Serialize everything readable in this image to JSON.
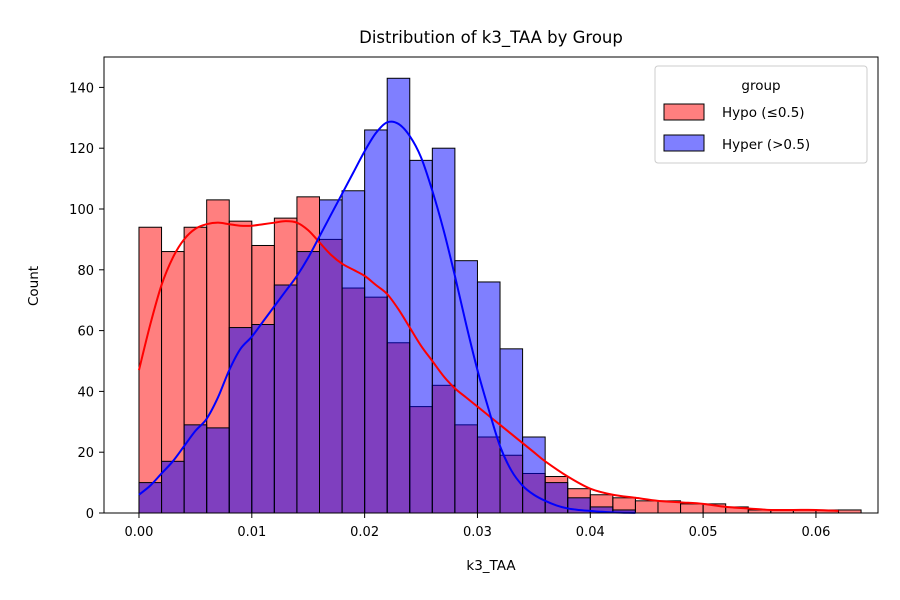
{
  "chart_data": {
    "type": "histogram",
    "title": "Distribution of k3_TAA by Group",
    "xlabel": "k3_TAA",
    "ylabel": "Count",
    "xlim": [
      -0.0031,
      0.0655
    ],
    "ylim": [
      0,
      150
    ],
    "x_ticks": [
      0.0,
      0.01,
      0.02,
      0.03,
      0.04,
      0.05,
      0.06
    ],
    "x_tick_labels": [
      "0.00",
      "0.01",
      "0.02",
      "0.03",
      "0.04",
      "0.05",
      "0.06"
    ],
    "y_ticks": [
      0,
      20,
      40,
      60,
      80,
      100,
      120,
      140
    ],
    "y_tick_labels": [
      "0",
      "20",
      "40",
      "60",
      "80",
      "100",
      "120",
      "140"
    ],
    "bin_start": 0.0,
    "bin_width": 0.002,
    "legend": {
      "title": "group",
      "placement": "top-right"
    },
    "series": [
      {
        "name": "Hypo (≤0.5)",
        "fill_color": "#ff0000",
        "fill_alpha": 0.5,
        "line_color": "#ff0000",
        "counts": [
          94,
          86,
          94,
          103,
          96,
          88,
          97,
          104,
          90,
          74,
          71,
          56,
          35,
          42,
          29,
          25,
          19,
          13,
          12,
          8,
          6,
          5,
          4,
          4,
          3,
          3,
          2,
          1,
          1,
          1,
          1,
          1
        ],
        "kde": {
          "x": [
            0.0,
            0.001,
            0.002,
            0.003,
            0.004,
            0.005,
            0.006,
            0.007,
            0.008,
            0.009,
            0.01,
            0.011,
            0.012,
            0.013,
            0.014,
            0.015,
            0.016,
            0.017,
            0.018,
            0.019,
            0.02,
            0.021,
            0.022,
            0.023,
            0.024,
            0.025,
            0.026,
            0.027,
            0.028,
            0.029,
            0.03,
            0.031,
            0.032,
            0.033,
            0.034,
            0.035,
            0.036,
            0.038,
            0.04,
            0.042,
            0.044,
            0.046,
            0.048,
            0.05,
            0.052,
            0.054,
            0.056,
            0.058,
            0.06,
            0.062
          ],
          "y": [
            47,
            62,
            75,
            84,
            90,
            93.5,
            95,
            95.5,
            95,
            94.5,
            94.5,
            95,
            95.5,
            96,
            95.5,
            93,
            89,
            85,
            82,
            80,
            78,
            75,
            72,
            67,
            61,
            55,
            50,
            45,
            41,
            38,
            35,
            32,
            29,
            26,
            23,
            20,
            17,
            12,
            8,
            6,
            5,
            4,
            3.5,
            3,
            2,
            1.5,
            1,
            1,
            1,
            0.7
          ]
        }
      },
      {
        "name": "Hyper (>0.5)",
        "fill_color": "#0000ff",
        "fill_alpha": 0.5,
        "line_color": "#0000ff",
        "counts": [
          10,
          17,
          29,
          28,
          61,
          62,
          75,
          86,
          103,
          106,
          126,
          143,
          116,
          120,
          83,
          76,
          54,
          25,
          10,
          5,
          2,
          1,
          0,
          0,
          0,
          0,
          0,
          0,
          0,
          0,
          0,
          0
        ],
        "kde": {
          "x": [
            0.0,
            0.001,
            0.002,
            0.003,
            0.004,
            0.005,
            0.006,
            0.007,
            0.008,
            0.009,
            0.01,
            0.011,
            0.012,
            0.013,
            0.014,
            0.015,
            0.016,
            0.017,
            0.018,
            0.019,
            0.02,
            0.021,
            0.022,
            0.023,
            0.024,
            0.025,
            0.026,
            0.027,
            0.028,
            0.029,
            0.03,
            0.031,
            0.032,
            0.033,
            0.034,
            0.035,
            0.036,
            0.037,
            0.038,
            0.039,
            0.04,
            0.041,
            0.042,
            0.043,
            0.044
          ],
          "y": [
            6,
            9,
            13,
            17,
            22,
            27,
            31,
            38,
            47,
            54,
            58,
            63,
            68,
            73,
            78,
            84,
            91,
            98,
            105,
            112,
            119,
            125,
            128.5,
            128,
            124,
            117,
            106,
            93,
            78,
            62,
            47,
            34,
            22,
            14,
            9,
            6,
            4,
            2.5,
            1.5,
            1,
            0.7,
            0.4,
            0.2,
            0.1,
            0.05
          ]
        }
      }
    ]
  }
}
